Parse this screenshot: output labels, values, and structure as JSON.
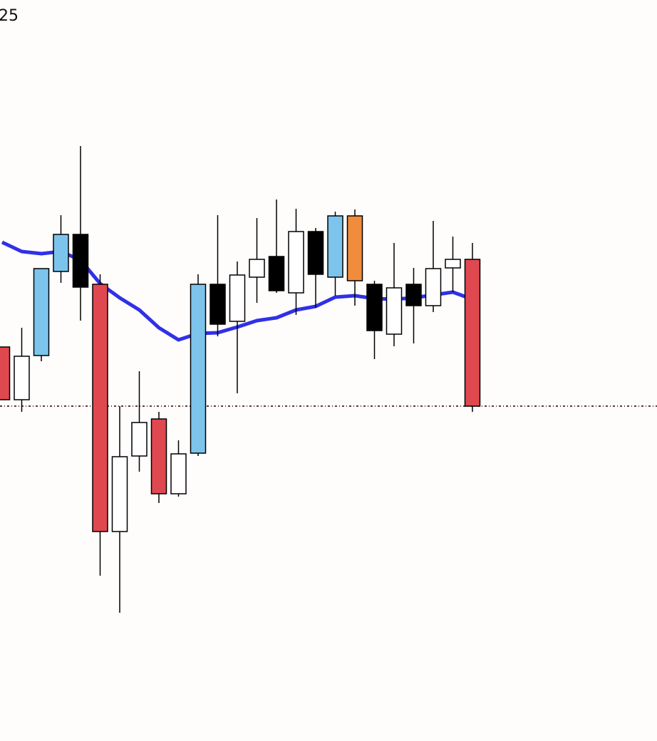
{
  "chart_data": {
    "type": "candlestick",
    "label": "25",
    "open": [
      553,
      479,
      541,
      659,
      711,
      641,
      294,
      400,
      452,
      347,
      404,
      641,
      589,
      651,
      680,
      629,
      715,
      651,
      737,
      641,
      571,
      641,
      611,
      664,
      676
    ],
    "high": [
      553,
      580,
      663,
      738,
      835,
      655,
      470,
      519,
      462,
      422,
      655,
      738,
      673,
      734,
      760,
      747,
      720,
      743,
      746,
      646,
      699,
      664,
      730,
      708,
      699
    ],
    "low": [
      479,
      462,
      533,
      643,
      590,
      232,
      180,
      378,
      334,
      343,
      400,
      568,
      488,
      615,
      629,
      598,
      608,
      625,
      611,
      536,
      554,
      558,
      602,
      630,
      462
    ],
    "close": [
      479,
      540,
      663,
      711,
      637,
      294,
      399,
      447,
      347,
      403,
      641,
      585,
      654,
      676,
      632,
      715,
      655,
      737,
      646,
      576,
      636,
      611,
      663,
      676,
      470
    ],
    "colors": [
      "#e04850",
      "#ffffff",
      "#7cc4ec",
      "#7cc4ec",
      "#000000",
      "#e04850",
      "#ffffff",
      "#ffffff",
      "#e04850",
      "#ffffff",
      "#7cc4ec",
      "#000000",
      "#ffffff",
      "#ffffff",
      "#000000",
      "#ffffff",
      "#000000",
      "#7cc4ec",
      "#f08c3c",
      "#000000",
      "#ffffff",
      "#000000",
      "#ffffff",
      "#ffffff",
      "#e04850"
    ],
    "moving_average": {
      "color": "#3030e8",
      "values": [
        700,
        687,
        684,
        687,
        675,
        642,
        622,
        605,
        580,
        563,
        572,
        573,
        581,
        590,
        594,
        605,
        610,
        623,
        625,
        621,
        620,
        622,
        626,
        630,
        620
      ]
    },
    "last_price": {
      "value": 470,
      "color": "#5a3a44"
    },
    "ylim": [
      0,
      1040
    ]
  }
}
